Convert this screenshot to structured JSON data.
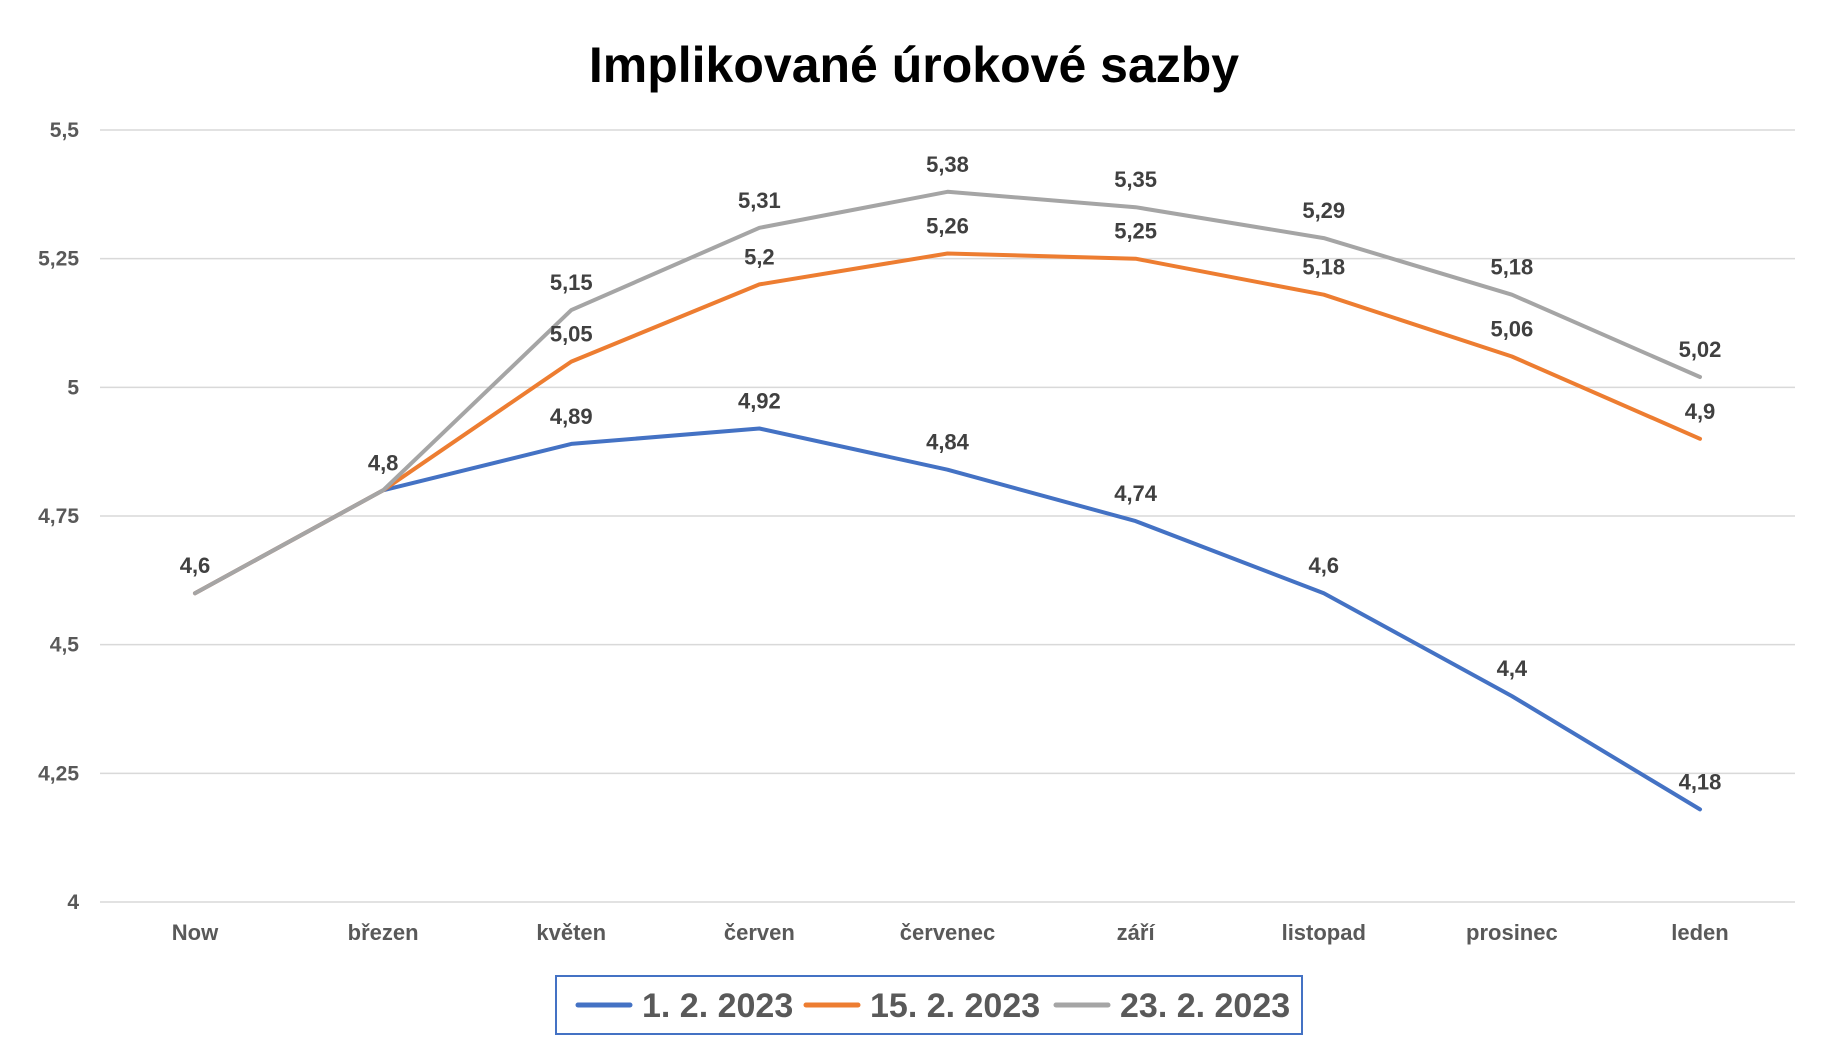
{
  "chart_data": {
    "type": "line",
    "title": "Implikované úrokové sazby",
    "xlabel": "",
    "ylabel": "",
    "categories": [
      "Now",
      "březen",
      "květen",
      "červen",
      "červenec",
      "září",
      "listopad",
      "prosinec",
      "leden"
    ],
    "ylim": [
      4,
      5.5
    ],
    "yticks": [
      4,
      4.25,
      4.5,
      4.75,
      5,
      5.25,
      5.5
    ],
    "ytick_labels": [
      "4",
      "4,25",
      "4,5",
      "4,75",
      "5",
      "5,25",
      "5,5"
    ],
    "grid": true,
    "legend_position": "bottom",
    "series": [
      {
        "name": "1. 2. 2023",
        "color": "#4472c4",
        "values": [
          4.6,
          4.8,
          4.89,
          4.92,
          4.84,
          4.74,
          4.6,
          4.4,
          4.18
        ],
        "labels": [
          "4,6",
          "4,8",
          "4,89",
          "4,92",
          "4,84",
          "4,74",
          "4,6",
          "4,4",
          "4,18"
        ]
      },
      {
        "name": "15. 2. 2023",
        "color": "#ed7d31",
        "values": [
          4.6,
          4.8,
          5.05,
          5.2,
          5.26,
          5.25,
          5.18,
          5.06,
          4.9
        ],
        "labels": [
          "",
          "",
          "5,05",
          "5,2",
          "5,26",
          "5,25",
          "5,18",
          "5,06",
          "4,9"
        ]
      },
      {
        "name": "23. 2. 2023",
        "color": "#a5a5a5",
        "values": [
          4.6,
          4.8,
          5.15,
          5.31,
          5.38,
          5.35,
          5.29,
          5.18,
          5.02
        ],
        "labels": [
          "",
          "",
          "5,15",
          "5,31",
          "5,38",
          "5,35",
          "5,29",
          "5,18",
          "5,02"
        ]
      }
    ]
  }
}
